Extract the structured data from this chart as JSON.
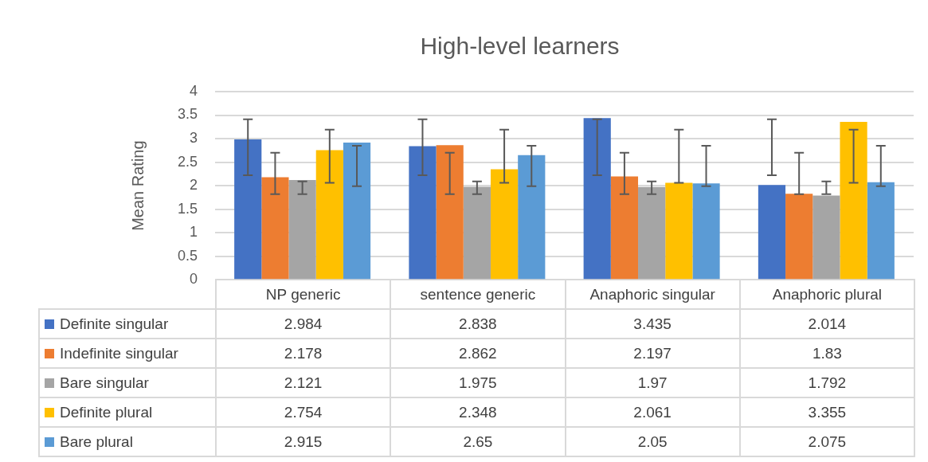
{
  "chart_data": {
    "type": "bar",
    "title": "High-level learners",
    "ylabel": "Mean Rating",
    "categories": [
      "NP generic",
      "sentence generic",
      "Anaphoric singular",
      "Anaphoric plural"
    ],
    "series": [
      {
        "name": "Definite singular",
        "color": "#4472c4",
        "values": [
          2.984,
          2.838,
          3.435,
          2.014
        ],
        "errors": [
          [
            2.22,
            3.41
          ],
          [
            2.22,
            3.41
          ],
          [
            2.22,
            3.41
          ],
          [
            2.22,
            3.41
          ]
        ]
      },
      {
        "name": "Indefinite singular",
        "color": "#ed7d31",
        "values": [
          2.178,
          2.862,
          2.197,
          1.83
        ],
        "errors": [
          [
            1.82,
            2.7
          ],
          [
            1.82,
            2.7
          ],
          [
            1.82,
            2.7
          ],
          [
            1.82,
            2.7
          ]
        ]
      },
      {
        "name": "Bare singular",
        "color": "#a5a5a5",
        "values": [
          2.121,
          1.975,
          1.97,
          1.792
        ],
        "errors": [
          [
            1.82,
            2.09
          ],
          [
            1.82,
            2.09
          ],
          [
            1.82,
            2.09
          ],
          [
            1.82,
            2.09
          ]
        ]
      },
      {
        "name": "Definite plural",
        "color": "#ffc000",
        "values": [
          2.754,
          2.348,
          2.061,
          3.355
        ],
        "errors": [
          [
            2.06,
            3.19
          ],
          [
            2.06,
            3.19
          ],
          [
            2.06,
            3.19
          ],
          [
            2.06,
            3.19
          ]
        ]
      },
      {
        "name": "Bare plural",
        "color": "#5b9bd5",
        "values": [
          2.915,
          2.65,
          2.05,
          2.075
        ],
        "errors": [
          [
            1.99,
            2.85
          ],
          [
            1.99,
            2.85
          ],
          [
            1.99,
            2.85
          ],
          [
            1.99,
            2.85
          ]
        ]
      }
    ],
    "ylim": [
      0,
      4
    ],
    "yticks": [
      0,
      0.5,
      1,
      1.5,
      2,
      2.5,
      3,
      3.5,
      4
    ],
    "grid": "y",
    "legend": "bottom",
    "data_labels": true
  }
}
